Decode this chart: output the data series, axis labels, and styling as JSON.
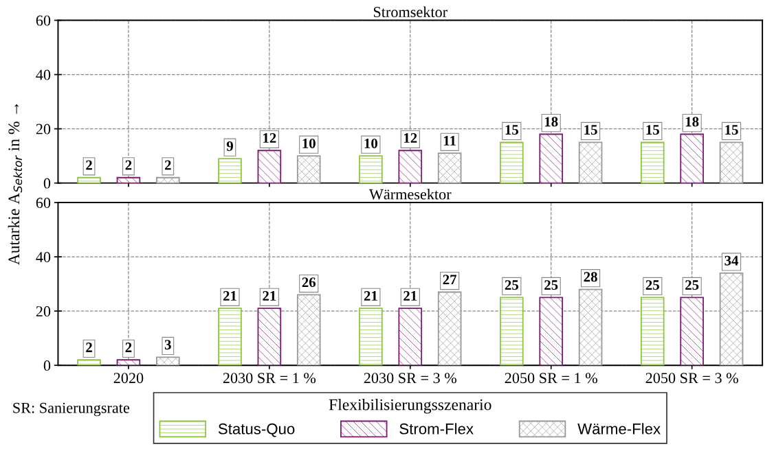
{
  "chart_data": [
    {
      "type": "bar",
      "title": "Stromsektor",
      "ylabel": "Autarkie A$_{Sektor}$ in % →",
      "categories": [
        null,
        null,
        null,
        null,
        null
      ],
      "ylim": [
        0,
        60
      ],
      "yticks": [
        0,
        20,
        40,
        60
      ],
      "grid": true,
      "tick_labels": "y",
      "data_labels": true,
      "series": [
        {
          "color": "#8cc63f",
          "values": [
            2,
            9,
            10,
            15,
            15
          ]
        },
        {
          "color": "#7b1a6e",
          "values": [
            2,
            12,
            12,
            18,
            18
          ]
        },
        {
          "color": "#999999",
          "values": [
            2,
            10,
            11,
            15,
            15
          ]
        }
      ]
    },
    {
      "type": "bar",
      "title": "Wärmesektor",
      "annotations": [
        "SR: Sanierungsrate"
      ],
      "categories": [
        "2020",
        "2030 SR = 1 %",
        "2030 SR = 3 %",
        "2050 SR = 1 %",
        "2050 SR = 3 %"
      ],
      "ylim": [
        0,
        60
      ],
      "yticks": [
        0,
        20,
        40,
        60
      ],
      "grid": true,
      "data_labels": true,
      "legend": "bottom",
      "legend_title": "Flexibilisierungsszenario",
      "series": [
        {
          "name": "Status-Quo",
          "color": "#8cc63f",
          "values": [
            2,
            21,
            21,
            25,
            25
          ]
        },
        {
          "name": "Strom-Flex",
          "color": "#7b1a6e",
          "values": [
            2,
            21,
            21,
            25,
            25
          ]
        },
        {
          "name": "Wärme-Flex",
          "color": "#999999",
          "values": [
            3,
            26,
            27,
            28,
            34
          ]
        }
      ]
    }
  ]
}
